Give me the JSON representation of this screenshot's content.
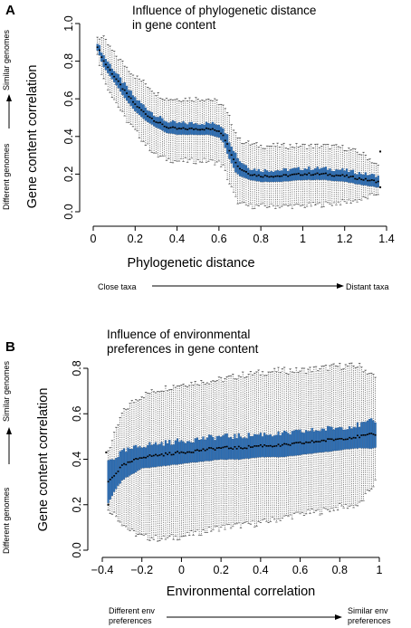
{
  "chart_data": [
    {
      "type": "box",
      "panel_label": "A",
      "title_lines": [
        "Influence of phylogenetic distance",
        "in gene content"
      ],
      "xlabel": "Phylogenetic distance",
      "ylabel": "Gene content correlation",
      "xlim": [
        0,
        1.4
      ],
      "ylim": [
        0,
        1
      ],
      "x_ticks": [
        {
          "v": 0,
          "label": "0"
        },
        {
          "v": 0.2,
          "label": "0.2"
        },
        {
          "v": 0.4,
          "label": "0.4"
        },
        {
          "v": 0.6,
          "label": "0.6"
        },
        {
          "v": 0.8,
          "label": "0.8"
        },
        {
          "v": 1.0,
          "label": "1"
        },
        {
          "v": 1.2,
          "label": "1.2"
        },
        {
          "v": 1.4,
          "label": "1.4"
        }
      ],
      "y_ticks": [
        {
          "v": 0,
          "label": "0.0"
        },
        {
          "v": 0.2,
          "label": "0.2"
        },
        {
          "v": 0.4,
          "label": "0.4"
        },
        {
          "v": 0.6,
          "label": "0.6"
        },
        {
          "v": 0.8,
          "label": "0.8"
        },
        {
          "v": 1.0,
          "label": "1.0"
        }
      ],
      "x_range": [
        0.02,
        1.36
      ],
      "box_step": 0.01,
      "median_profile": {
        "x": [
          0.02,
          0.05,
          0.1,
          0.15,
          0.2,
          0.25,
          0.3,
          0.35,
          0.4,
          0.45,
          0.5,
          0.55,
          0.6,
          0.62,
          0.65,
          0.68,
          0.7,
          0.75,
          0.8,
          0.9,
          1.0,
          1.1,
          1.2,
          1.3,
          1.36
        ],
        "median": [
          0.88,
          0.8,
          0.72,
          0.64,
          0.57,
          0.52,
          0.48,
          0.45,
          0.44,
          0.44,
          0.44,
          0.44,
          0.43,
          0.41,
          0.33,
          0.26,
          0.23,
          0.2,
          0.19,
          0.19,
          0.2,
          0.2,
          0.19,
          0.17,
          0.16
        ],
        "box_half_height": [
          0.02,
          0.03,
          0.03,
          0.035,
          0.035,
          0.035,
          0.03,
          0.03,
          0.03,
          0.03,
          0.03,
          0.03,
          0.035,
          0.04,
          0.05,
          0.05,
          0.04,
          0.03,
          0.03,
          0.03,
          0.03,
          0.03,
          0.03,
          0.03,
          0.03
        ],
        "whisker_low": [
          0.83,
          0.7,
          0.6,
          0.5,
          0.43,
          0.36,
          0.3,
          0.28,
          0.27,
          0.27,
          0.27,
          0.27,
          0.26,
          0.24,
          0.15,
          0.07,
          0.04,
          0.03,
          0.03,
          0.03,
          0.03,
          0.04,
          0.05,
          0.07,
          0.1
        ],
        "whisker_high": [
          0.93,
          0.92,
          0.84,
          0.78,
          0.72,
          0.68,
          0.63,
          0.6,
          0.6,
          0.6,
          0.6,
          0.6,
          0.58,
          0.56,
          0.5,
          0.42,
          0.38,
          0.36,
          0.35,
          0.35,
          0.35,
          0.35,
          0.34,
          0.3,
          0.24
        ]
      },
      "outliers": [
        {
          "x": 1.37,
          "y": 0.32
        },
        {
          "x": 1.37,
          "y": 0.13
        }
      ],
      "annotations": {
        "x_left": "Close taxa",
        "x_right": "Distant taxa",
        "y_bottom": "Different genomes",
        "y_top": "Similar genomes"
      }
    },
    {
      "type": "box",
      "panel_label": "B",
      "title_lines": [
        "Influence of environmental",
        "preferences in gene content"
      ],
      "xlabel": "Environmental correlation",
      "ylabel": "Gene content correlation",
      "xlim": [
        -0.4,
        1.0
      ],
      "ylim": [
        0,
        0.8
      ],
      "x_ticks": [
        {
          "v": -0.4,
          "label": "−0.4"
        },
        {
          "v": -0.2,
          "label": "−0.2"
        },
        {
          "v": 0,
          "label": "0"
        },
        {
          "v": 0.2,
          "label": "0.2"
        },
        {
          "v": 0.4,
          "label": "0.4"
        },
        {
          "v": 0.6,
          "label": "0.6"
        },
        {
          "v": 0.8,
          "label": "0.8"
        },
        {
          "v": 1.0,
          "label": "1"
        }
      ],
      "y_ticks": [
        {
          "v": 0,
          "label": "0.0"
        },
        {
          "v": 0.2,
          "label": "0.2"
        },
        {
          "v": 0.4,
          "label": "0.4"
        },
        {
          "v": 0.6,
          "label": "0.6"
        },
        {
          "v": 0.8,
          "label": "0.8"
        }
      ],
      "x_range": [
        -0.37,
        0.98
      ],
      "box_step": 0.01,
      "median_profile": {
        "x": [
          -0.37,
          -0.35,
          -0.3,
          -0.25,
          -0.2,
          -0.1,
          0,
          0.1,
          0.2,
          0.3,
          0.4,
          0.5,
          0.6,
          0.7,
          0.8,
          0.9,
          0.98
        ],
        "median": [
          0.3,
          0.32,
          0.37,
          0.39,
          0.41,
          0.42,
          0.43,
          0.44,
          0.45,
          0.45,
          0.46,
          0.46,
          0.47,
          0.48,
          0.49,
          0.5,
          0.51
        ],
        "box_half_height": [
          0.09,
          0.08,
          0.06,
          0.055,
          0.05,
          0.05,
          0.05,
          0.05,
          0.05,
          0.05,
          0.05,
          0.05,
          0.05,
          0.05,
          0.05,
          0.05,
          0.06
        ],
        "whisker_low": [
          0.17,
          0.17,
          0.12,
          0.08,
          0.06,
          0.05,
          0.06,
          0.08,
          0.1,
          0.11,
          0.12,
          0.14,
          0.16,
          0.17,
          0.19,
          0.2,
          0.3
        ],
        "whisker_high": [
          0.44,
          0.48,
          0.6,
          0.65,
          0.68,
          0.71,
          0.73,
          0.74,
          0.75,
          0.77,
          0.78,
          0.79,
          0.79,
          0.8,
          0.81,
          0.81,
          0.76
        ]
      },
      "outliers": [
        {
          "x": -0.38,
          "y": 0.43
        },
        {
          "x": -0.37,
          "y": 0.2
        }
      ],
      "annotations": {
        "x_left": "Different env\npreferences",
        "x_right": "Similar env\npreferences",
        "y_bottom": "Different genomes",
        "y_top": "Similar genomes"
      }
    }
  ],
  "colors": {
    "box_fill": "#2d6fb5",
    "box_edge": "#1a4b85",
    "median": "#000000",
    "whisker": "#333333",
    "axis": "#000000"
  }
}
